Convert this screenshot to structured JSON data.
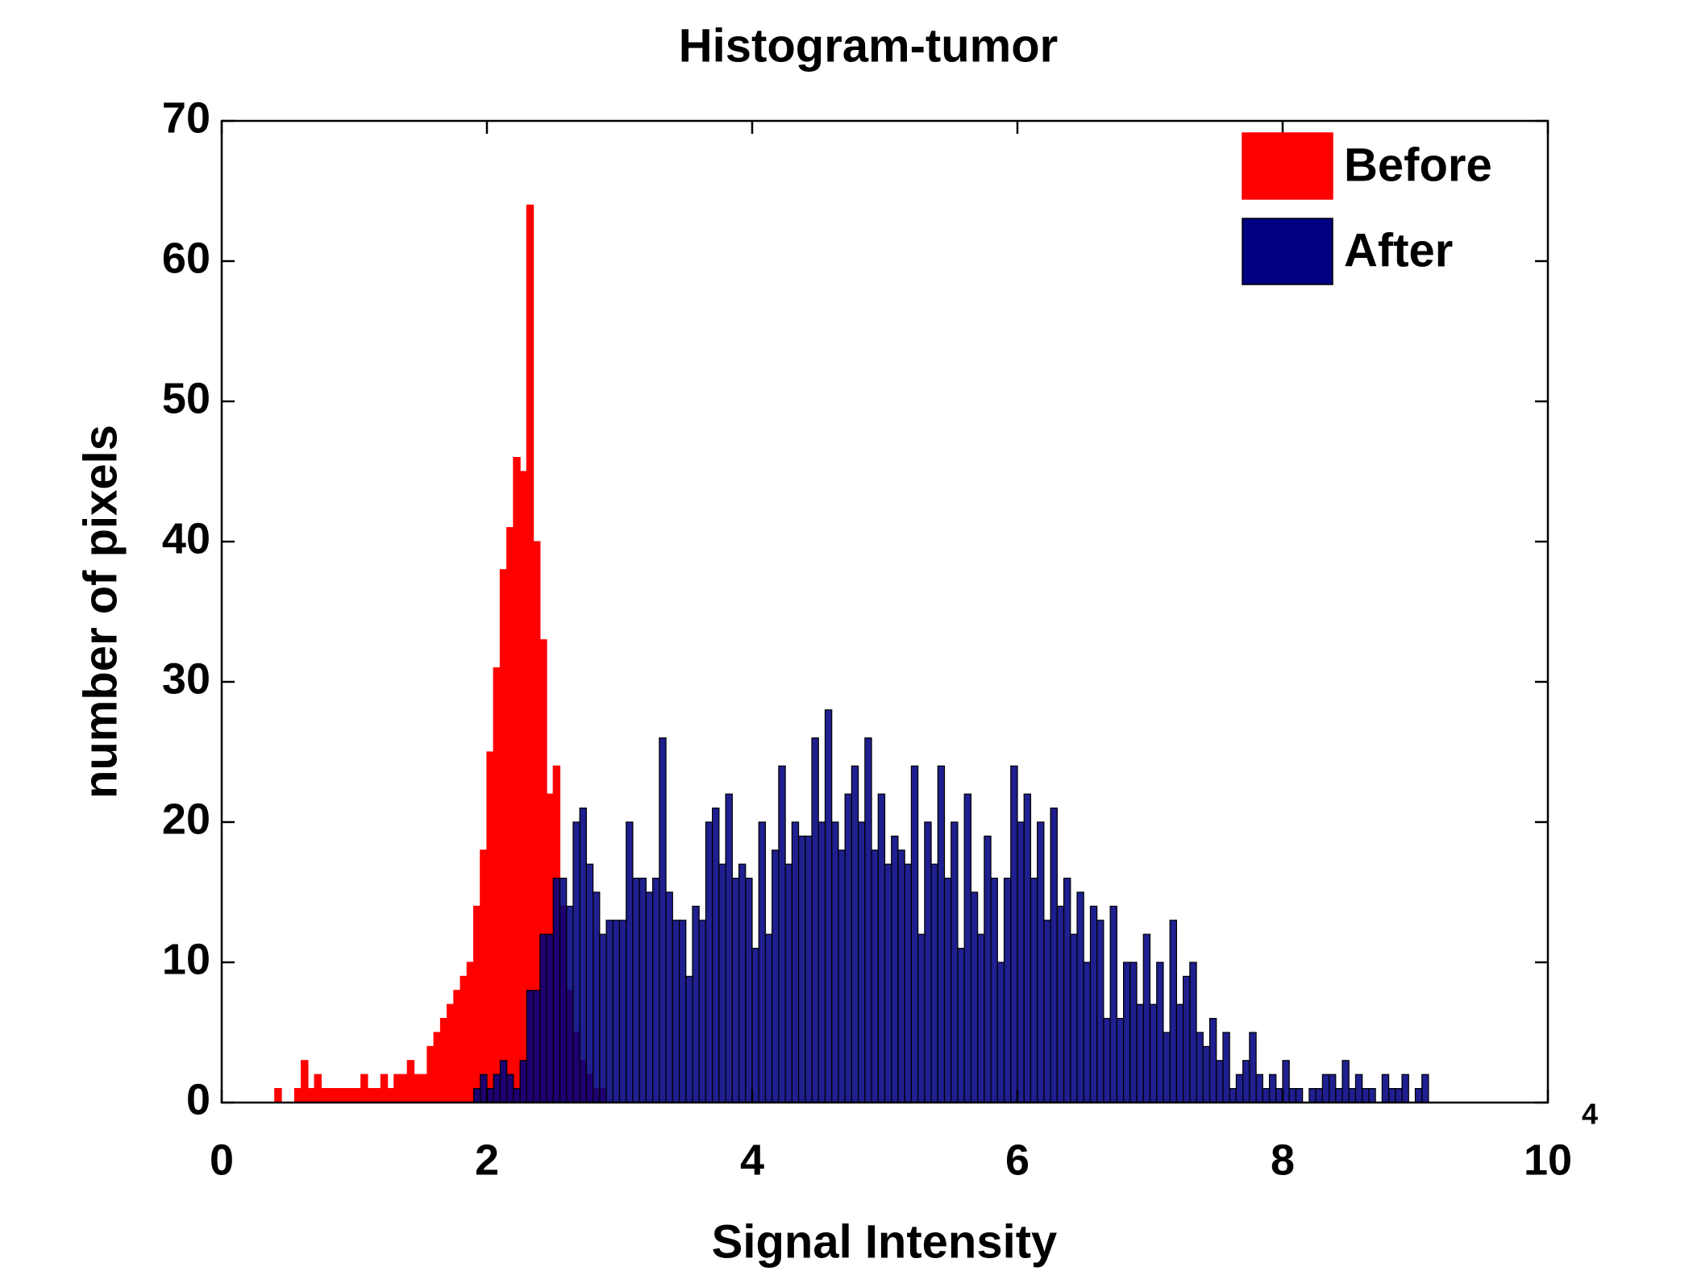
{
  "chart_data": {
    "type": "histogram",
    "title": "Histogram-tumor",
    "x_label": "Signal Intensity",
    "y_label": "number of pixels",
    "x_exponent": "4",
    "xlim": [
      0,
      10
    ],
    "ylim": [
      0,
      70
    ],
    "xticks": [
      0,
      2,
      4,
      6,
      8,
      10
    ],
    "yticks": [
      0,
      10,
      20,
      30,
      40,
      50,
      60,
      70
    ],
    "legend": "upper right",
    "series": [
      {
        "name": "Before",
        "color": "#ff0000",
        "bins": [
          0.4,
          0.45,
          0.5,
          0.55,
          0.6,
          0.65,
          0.7,
          0.75,
          0.8,
          0.85,
          0.9,
          0.95,
          1.0,
          1.05,
          1.1,
          1.15,
          1.2,
          1.25,
          1.3,
          1.35,
          1.4,
          1.45,
          1.5,
          1.55,
          1.6,
          1.65,
          1.7,
          1.75,
          1.8,
          1.85,
          1.9,
          1.95,
          2.0,
          2.05,
          2.1,
          2.15,
          2.2,
          2.25,
          2.3,
          2.35,
          2.4,
          2.45,
          2.5,
          2.55,
          2.6,
          2.65,
          2.7,
          2.75,
          2.8,
          2.85,
          2.9
        ],
        "values": [
          1,
          0,
          0,
          1,
          3,
          1,
          2,
          1,
          1,
          1,
          1,
          1,
          1,
          2,
          1,
          1,
          2,
          1,
          2,
          2,
          3,
          2,
          2,
          4,
          5,
          6,
          7,
          8,
          9,
          10,
          14,
          18,
          25,
          31,
          38,
          41,
          46,
          45,
          64,
          40,
          33,
          22,
          24,
          14,
          8,
          5,
          3,
          2,
          1,
          1
        ]
      },
      {
        "name": "After",
        "color": "#000080",
        "bins": [
          1.9,
          1.95,
          2.0,
          2.05,
          2.1,
          2.15,
          2.2,
          2.25,
          2.3,
          2.35,
          2.4,
          2.45,
          2.5,
          2.55,
          2.6,
          2.65,
          2.7,
          2.75,
          2.8,
          2.85,
          2.9,
          2.95,
          3.0,
          3.05,
          3.1,
          3.15,
          3.2,
          3.25,
          3.3,
          3.35,
          3.4,
          3.45,
          3.5,
          3.55,
          3.6,
          3.65,
          3.7,
          3.75,
          3.8,
          3.85,
          3.9,
          3.95,
          4.0,
          4.05,
          4.1,
          4.15,
          4.2,
          4.25,
          4.3,
          4.35,
          4.4,
          4.45,
          4.5,
          4.55,
          4.6,
          4.65,
          4.7,
          4.75,
          4.8,
          4.85,
          4.9,
          4.95,
          5.0,
          5.05,
          5.1,
          5.15,
          5.2,
          5.25,
          5.3,
          5.35,
          5.4,
          5.45,
          5.5,
          5.55,
          5.6,
          5.65,
          5.7,
          5.75,
          5.8,
          5.85,
          5.9,
          5.95,
          6.0,
          6.05,
          6.1,
          6.15,
          6.2,
          6.25,
          6.3,
          6.35,
          6.4,
          6.45,
          6.5,
          6.55,
          6.6,
          6.65,
          6.7,
          6.75,
          6.8,
          6.85,
          6.9,
          6.95,
          7.0,
          7.05,
          7.1,
          7.15,
          7.2,
          7.25,
          7.3,
          7.35,
          7.4,
          7.45,
          7.5,
          7.55,
          7.6,
          7.65,
          7.7,
          7.75,
          7.8,
          7.85,
          7.9,
          7.95,
          8.0,
          8.05,
          8.1,
          8.15,
          8.2,
          8.25,
          8.3,
          8.35,
          8.4,
          8.45,
          8.5,
          8.55,
          8.6,
          8.65,
          8.7,
          8.75,
          8.8,
          8.85,
          8.9,
          8.95,
          9.0,
          9.05,
          9.1
        ],
        "values": [
          1,
          2,
          1,
          2,
          3,
          2,
          1,
          3,
          8,
          8,
          12,
          12,
          16,
          16,
          14,
          20,
          21,
          17,
          15,
          12,
          13,
          13,
          13,
          20,
          16,
          16,
          15,
          16,
          26,
          15,
          13,
          13,
          9,
          14,
          13,
          20,
          21,
          17,
          22,
          16,
          17,
          16,
          11,
          20,
          12,
          18,
          24,
          17,
          20,
          19,
          19,
          26,
          20,
          28,
          20,
          18,
          22,
          24,
          20,
          26,
          18,
          22,
          17,
          19,
          18,
          17,
          24,
          12,
          20,
          17,
          24,
          16,
          20,
          11,
          22,
          15,
          12,
          19,
          16,
          10,
          16,
          24,
          20,
          22,
          16,
          20,
          13,
          21,
          14,
          16,
          12,
          15,
          10,
          14,
          13,
          6,
          14,
          6,
          10,
          10,
          7,
          12,
          7,
          10,
          5,
          13,
          7,
          9,
          10,
          5,
          4,
          6,
          3,
          5,
          1,
          2,
          3,
          5,
          2,
          1,
          2,
          1,
          3,
          1,
          1,
          0,
          1,
          1,
          2,
          2,
          1,
          3,
          1,
          2,
          1,
          1,
          0,
          2,
          1,
          1,
          2,
          0,
          1,
          2
        ]
      }
    ]
  }
}
